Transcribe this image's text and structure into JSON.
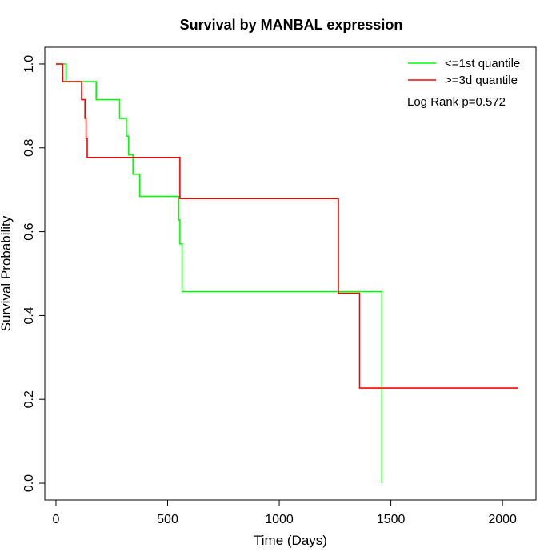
{
  "chart_data": {
    "type": "line",
    "step": true,
    "title": "Survival by MANBAL expression",
    "xlabel": "Time (Days)",
    "ylabel": "Survival Probability",
    "xlim": [
      -50,
      2150
    ],
    "ylim": [
      -0.04,
      1.04
    ],
    "xticks": [
      0,
      500,
      1000,
      1500,
      2000
    ],
    "xtick_labels": [
      "0",
      "500",
      "1000",
      "1500",
      "2000"
    ],
    "yticks": [
      0.0,
      0.2,
      0.4,
      0.6,
      0.8,
      1.0
    ],
    "ytick_labels": [
      "0.0",
      "0.2",
      "0.4",
      "0.6",
      "0.8",
      "1.0"
    ],
    "grid": false,
    "legend_position": "top-right",
    "annotation": "Log Rank p=0.572",
    "series": [
      {
        "name": "<=1st quantile",
        "color": "#00ff00",
        "x": [
          0,
          45,
          45,
          180,
          180,
          285,
          285,
          315,
          315,
          325,
          325,
          345,
          345,
          375,
          375,
          550,
          550,
          555,
          555,
          565,
          565,
          1460,
          1460
        ],
        "y": [
          1.0,
          1.0,
          0.958,
          0.958,
          0.915,
          0.915,
          0.87,
          0.87,
          0.828,
          0.828,
          0.783,
          0.783,
          0.737,
          0.737,
          0.684,
          0.684,
          0.628,
          0.628,
          0.571,
          0.571,
          0.457,
          0.457,
          0.0
        ]
      },
      {
        "name": ">=3d quantile",
        "color": "#ff0000",
        "x": [
          0,
          30,
          30,
          115,
          115,
          130,
          130,
          135,
          135,
          140,
          140,
          555,
          555,
          1265,
          1265,
          1360,
          1360,
          2070
        ],
        "y": [
          1.0,
          1.0,
          0.958,
          0.958,
          0.915,
          0.915,
          0.87,
          0.87,
          0.822,
          0.822,
          0.777,
          0.777,
          0.679,
          0.679,
          0.453,
          0.453,
          0.227,
          0.227
        ]
      }
    ]
  }
}
